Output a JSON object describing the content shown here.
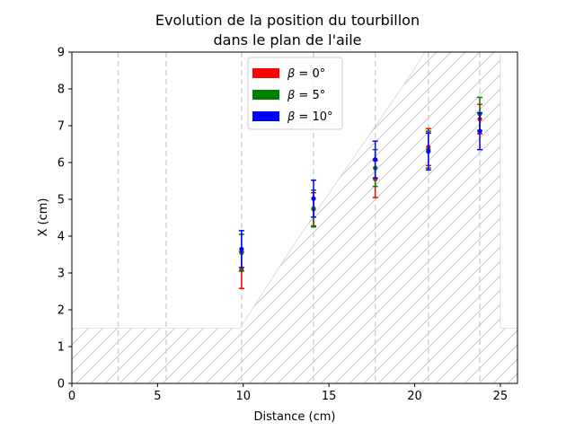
{
  "chart_data": {
    "type": "scatter",
    "title_line1": "Evolution de la position du tourbillon",
    "title_line2": "dans le plan de l'aile",
    "xlabel": "Distance (cm)",
    "ylabel": "X (cm)",
    "xlim": [
      0,
      26
    ],
    "ylim": [
      0,
      9
    ],
    "xticks": [
      "0",
      "5",
      "10",
      "15",
      "20",
      "25"
    ],
    "yticks": [
      "0",
      "1",
      "2",
      "3",
      "4",
      "5",
      "6",
      "7",
      "8",
      "9"
    ],
    "legend_position": "upper center",
    "vlines": [
      2.7,
      5.5,
      9.9,
      14.1,
      17.7,
      20.8,
      23.8
    ],
    "hatched_region": [
      [
        0,
        0
      ],
      [
        0,
        1.5
      ],
      [
        9.8,
        1.5
      ],
      [
        13,
        3.8
      ],
      [
        15.2,
        5.3
      ],
      [
        19.5,
        8.2
      ],
      [
        20.6,
        9
      ],
      [
        25,
        9
      ],
      [
        25,
        1.5
      ],
      [
        26,
        1.5
      ],
      [
        26,
        0
      ]
    ],
    "series": [
      {
        "name": "β = 0°",
        "beta_value": "0°",
        "color": "#ff0000",
        "x": [
          9.9,
          14.1,
          17.7,
          20.8,
          23.8
        ],
        "y": [
          3.08,
          4.73,
          5.55,
          6.42,
          7.18
        ],
        "err": [
          0.5,
          0.45,
          0.5,
          0.5,
          0.4
        ]
      },
      {
        "name": "β = 5°",
        "beta_value": "5°",
        "color": "#008000",
        "x": [
          9.9,
          14.1,
          17.7,
          20.8,
          23.8
        ],
        "y": [
          3.55,
          4.75,
          5.85,
          6.35,
          7.32
        ],
        "err": [
          0.5,
          0.5,
          0.5,
          0.5,
          0.45
        ]
      },
      {
        "name": "β = 10°",
        "beta_value": "10°",
        "color": "#0000ff",
        "x": [
          9.9,
          14.1,
          17.7,
          20.8,
          23.8
        ],
        "y": [
          3.65,
          5.02,
          6.08,
          6.3,
          6.85
        ],
        "err": [
          0.5,
          0.5,
          0.5,
          0.5,
          0.5
        ]
      }
    ]
  }
}
